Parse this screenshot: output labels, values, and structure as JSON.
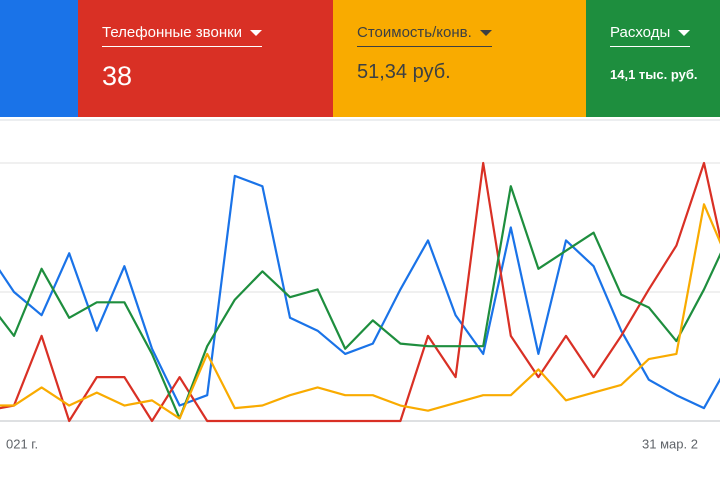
{
  "cards": [
    {
      "title": "Телефонные звонки",
      "value": "38",
      "color": "#d93025"
    },
    {
      "title": "Стоимость/конв.",
      "value": "51,34 руб.",
      "color": "#f9ab00"
    },
    {
      "title": "Расходы",
      "value": "14,1 тыс. руб.",
      "color": "#1e8e3e"
    }
  ],
  "chart_data": {
    "type": "line",
    "x_labels": [
      "021 г.",
      "31 мар. 2"
    ],
    "ylim": [
      0,
      100
    ],
    "ygrid": [
      0,
      50,
      100
    ],
    "series": [
      {
        "color": "#1a73e8",
        "values": [
          66,
          50,
          41,
          65,
          35,
          60,
          28,
          6,
          10,
          95,
          91,
          40,
          35,
          26,
          30,
          51,
          70,
          41,
          26,
          75,
          26,
          70,
          60,
          35,
          16,
          10,
          5,
          24
        ]
      },
      {
        "color": "#d93025",
        "values": [
          4,
          6,
          33,
          0,
          17,
          17,
          0,
          17,
          0,
          0,
          0,
          0,
          0,
          0,
          0,
          0,
          33,
          17,
          100,
          33,
          17,
          33,
          17,
          33,
          51,
          68,
          100,
          51
        ]
      },
      {
        "color": "#1e8e3e",
        "values": [
          47,
          33,
          59,
          40,
          46,
          46,
          26,
          1,
          29,
          47,
          58,
          48,
          51,
          28,
          39,
          30,
          29,
          29,
          29,
          91,
          59,
          66,
          73,
          49,
          44,
          31,
          51,
          74
        ]
      },
      {
        "color": "#f9ab00",
        "values": [
          6,
          6,
          13,
          6,
          11,
          6,
          8,
          1,
          26,
          5,
          6,
          10,
          13,
          10,
          10,
          6,
          4,
          7,
          10,
          10,
          20,
          8,
          11,
          14,
          24,
          26,
          84,
          59
        ]
      }
    ]
  }
}
